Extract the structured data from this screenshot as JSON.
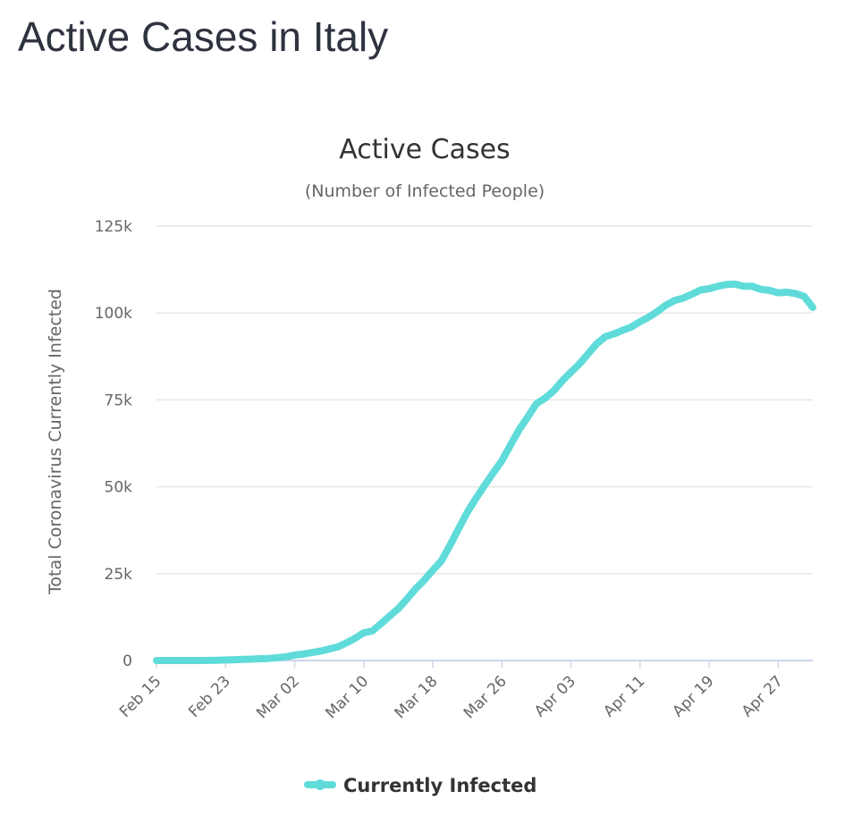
{
  "page": {
    "title": "Active Cases in Italy"
  },
  "chart_data": {
    "type": "line",
    "title": "Active Cases",
    "subtitle": "(Number of Infected People)",
    "ylabel": "Total Coronavirus Currently Infected",
    "xlabel": "",
    "ylim": [
      0,
      125000
    ],
    "yticks": [
      0,
      25000,
      50000,
      75000,
      100000,
      125000
    ],
    "ytick_labels": [
      "0",
      "25k",
      "50k",
      "75k",
      "100k",
      "125k"
    ],
    "xtick_labels": [
      "Feb 15",
      "Feb 23",
      "Mar 02",
      "Mar 10",
      "Mar 18",
      "Mar 26",
      "Apr 03",
      "Apr 11",
      "Apr 19",
      "Apr 27"
    ],
    "xtick_positions": [
      "2020-02-15",
      "2020-02-23",
      "2020-03-02",
      "2020-03-10",
      "2020-03-18",
      "2020-03-26",
      "2020-04-03",
      "2020-04-11",
      "2020-04-19",
      "2020-04-27"
    ],
    "x_start": "2020-02-15",
    "x_end": "2020-05-01",
    "grid": true,
    "legend": {
      "position": "bottom-center"
    },
    "series": [
      {
        "name": "Currently Infected",
        "color": "#5fdbd9",
        "x": [
          "2020-02-15",
          "2020-02-16",
          "2020-02-17",
          "2020-02-18",
          "2020-02-19",
          "2020-02-20",
          "2020-02-21",
          "2020-02-22",
          "2020-02-23",
          "2020-02-24",
          "2020-02-25",
          "2020-02-26",
          "2020-02-27",
          "2020-02-28",
          "2020-02-29",
          "2020-03-01",
          "2020-03-02",
          "2020-03-03",
          "2020-03-04",
          "2020-03-05",
          "2020-03-06",
          "2020-03-07",
          "2020-03-08",
          "2020-03-09",
          "2020-03-10",
          "2020-03-11",
          "2020-03-12",
          "2020-03-13",
          "2020-03-14",
          "2020-03-15",
          "2020-03-16",
          "2020-03-17",
          "2020-03-18",
          "2020-03-19",
          "2020-03-20",
          "2020-03-21",
          "2020-03-22",
          "2020-03-23",
          "2020-03-24",
          "2020-03-25",
          "2020-03-26",
          "2020-03-27",
          "2020-03-28",
          "2020-03-29",
          "2020-03-30",
          "2020-03-31",
          "2020-04-01",
          "2020-04-02",
          "2020-04-03",
          "2020-04-04",
          "2020-04-05",
          "2020-04-06",
          "2020-04-07",
          "2020-04-08",
          "2020-04-09",
          "2020-04-10",
          "2020-04-11",
          "2020-04-12",
          "2020-04-13",
          "2020-04-14",
          "2020-04-15",
          "2020-04-16",
          "2020-04-17",
          "2020-04-18",
          "2020-04-19",
          "2020-04-20",
          "2020-04-21",
          "2020-04-22",
          "2020-04-23",
          "2020-04-24",
          "2020-04-25",
          "2020-04-26",
          "2020-04-27",
          "2020-04-28",
          "2020-04-29",
          "2020-04-30",
          "2020-05-01"
        ],
        "values": [
          3,
          3,
          3,
          3,
          3,
          3,
          20,
          79,
          150,
          220,
          310,
          390,
          520,
          590,
          830,
          1050,
          1580,
          1840,
          2280,
          2700,
          3300,
          3900,
          5060,
          6400,
          8000,
          8500,
          10600,
          12800,
          14900,
          17700,
          20600,
          23100,
          26000,
          28700,
          33200,
          38000,
          42700,
          46600,
          50400,
          54000,
          57500,
          62000,
          66400,
          70100,
          73900,
          75500,
          77600,
          80500,
          83000,
          85400,
          88300,
          91200,
          93200,
          94000,
          95000,
          96000,
          97500,
          98800,
          100400,
          102300,
          103600,
          104300,
          105400,
          106600,
          107000,
          107700,
          108200,
          108300,
          107700,
          107700,
          106800,
          106500,
          105800,
          106000,
          105600,
          104800,
          101600
        ]
      }
    ]
  }
}
